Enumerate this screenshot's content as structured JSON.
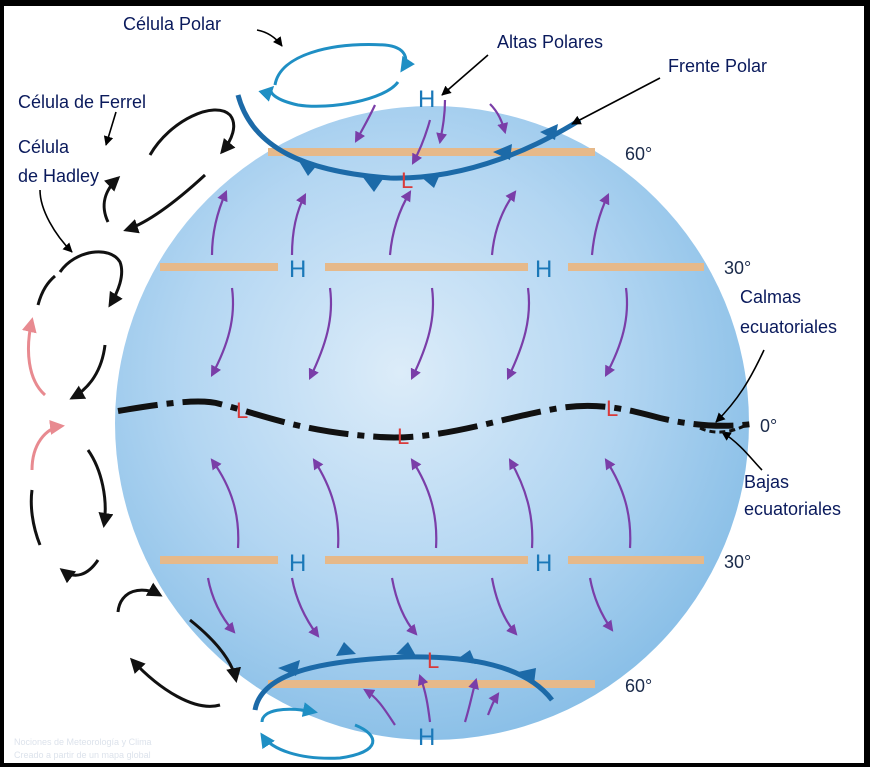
{
  "labels": {
    "celula_polar": "Célula Polar",
    "celula_ferrel": "Célula de Ferrel",
    "celula_hadley_1": "Célula",
    "celula_hadley_2": "de Hadley",
    "altas_polares": "Altas Polares",
    "frente_polar": "Frente Polar",
    "calmas_1": "Calmas",
    "calmas_2": "ecuatoriales",
    "bajas_1": "Bajas",
    "bajas_2": "ecuatoriales"
  },
  "latitudes": {
    "lat60_north": "60°",
    "lat30_north": "30°",
    "lat0": "0°",
    "lat30_south": "30°",
    "lat60_south": "60°"
  },
  "pressure": {
    "high": "H",
    "low": "L"
  },
  "watermark": {
    "line1": "Nociones de Meteorología y Clima",
    "line2": "Creado a partir de un mapa global"
  },
  "colors": {
    "globe_light": "#dcecf9",
    "globe_dark": "#86bde6",
    "parallel": "#e6b98a",
    "front": "#1c6aa8",
    "high": "#1a78b8",
    "low": "#d93a3a",
    "wind_arrow": "#7a3ea8",
    "polar_cell": "#1f8fc4",
    "ferrel_hadley_cell": "#111111",
    "hadley_warm_arc": "#e88a90",
    "label_text": "#0a1a5c"
  }
}
